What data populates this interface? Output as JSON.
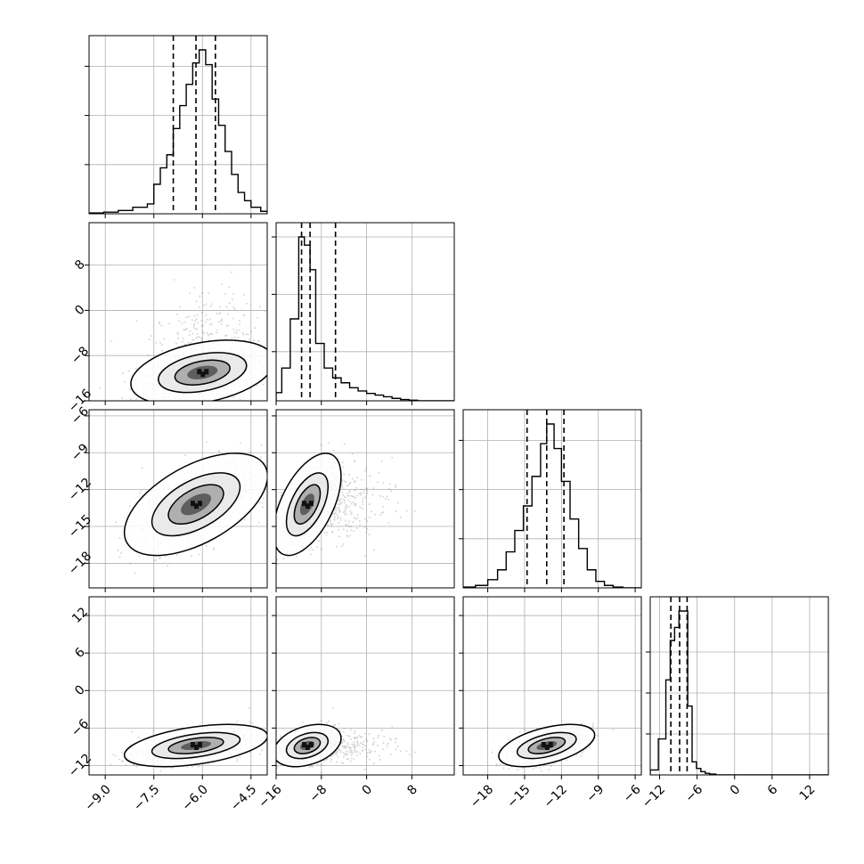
{
  "chart_data": {
    "type": "corner",
    "grid": true,
    "parameters": [
      {
        "index": 0,
        "range": [
          -9.5,
          -4.0
        ],
        "ticks": [
          -9.0,
          -7.5,
          -6.0,
          -4.5
        ],
        "tick_labels": [
          "−9.0",
          "−7.5",
          "−6.0",
          "−4.5"
        ],
        "quantiles": [
          -6.9,
          -6.2,
          -5.6
        ],
        "hist_bins": [
          -9.5,
          -9.05,
          -8.6,
          -8.15,
          -7.7,
          -7.5,
          -7.3,
          -7.1,
          -6.9,
          -6.7,
          -6.5,
          -6.3,
          -6.1,
          -5.9,
          -5.7,
          -5.5,
          -5.3,
          -5.1,
          -4.9,
          -4.7,
          -4.5,
          -4.2,
          -4.0
        ],
        "hist_counts": [
          0.005,
          0.01,
          0.02,
          0.04,
          0.06,
          0.18,
          0.28,
          0.36,
          0.52,
          0.66,
          0.79,
          0.92,
          1.0,
          0.91,
          0.7,
          0.54,
          0.38,
          0.24,
          0.13,
          0.08,
          0.04,
          0.015
        ],
        "hist_yticks": [
          0.3,
          0.6,
          0.9
        ]
      },
      {
        "index": 1,
        "range": [
          -16.0,
          15.5
        ],
        "ticks": [
          -16,
          -8,
          0,
          8
        ],
        "tick_labels": [
          "−16",
          "−8",
          "0",
          "8"
        ],
        "quantiles": [
          -11.5,
          -10.0,
          -5.5
        ],
        "hist_bins": [
          -16,
          -15,
          -13.5,
          -12,
          -11.0,
          -10.0,
          -9.0,
          -7.5,
          -6.0,
          -4.5,
          -3.0,
          -1.5,
          0,
          1.5,
          3.0,
          4.5,
          6.0,
          7.5,
          9.0,
          15.5
        ],
        "hist_counts": [
          0.05,
          0.2,
          0.5,
          1.0,
          0.95,
          0.8,
          0.35,
          0.2,
          0.14,
          0.11,
          0.08,
          0.06,
          0.045,
          0.035,
          0.025,
          0.015,
          0.008,
          0.004,
          0.0
        ],
        "hist_yticks": [
          0.3,
          0.65,
          1.0
        ],
        "axis_labels_visible": true
      },
      {
        "index": 2,
        "range": [
          -20.0,
          -5.5
        ],
        "ticks": [
          -18,
          -15,
          -12,
          -9,
          -6
        ],
        "tick_labels": [
          "−18",
          "−15",
          "−12",
          "−9",
          "−6"
        ],
        "quantiles": [
          -14.8,
          -13.2,
          -11.8
        ],
        "hist_bins": [
          -20,
          -19,
          -18,
          -17.2,
          -16.5,
          -15.8,
          -15.1,
          -14.4,
          -13.7,
          -13.2,
          -12.6,
          -12.0,
          -11.3,
          -10.6,
          -9.9,
          -9.2,
          -8.5,
          -7.8,
          -7.0,
          -5.5
        ],
        "hist_counts": [
          0.005,
          0.015,
          0.05,
          0.11,
          0.22,
          0.35,
          0.5,
          0.68,
          0.88,
          1.0,
          0.85,
          0.65,
          0.42,
          0.24,
          0.11,
          0.04,
          0.015,
          0.005,
          0.0
        ],
        "hist_yticks": [
          0.3,
          0.6,
          0.9
        ]
      },
      {
        "index": 3,
        "range": [
          -13.5,
          15.0
        ],
        "ticks": [
          -12,
          -6,
          0,
          6,
          12
        ],
        "tick_labels": [
          "−12",
          "−6",
          "0",
          "6",
          "12"
        ],
        "quantiles": [
          -10.2,
          -8.8,
          -7.6
        ],
        "hist_bins": [
          -13.5,
          -12.2,
          -11.0,
          -10.3,
          -9.6,
          -8.9,
          -8.2,
          -7.5,
          -6.8,
          -6.1,
          -5.4,
          -4.7,
          -4.0,
          -3.0,
          15.0
        ],
        "hist_counts": [
          0.03,
          0.22,
          0.58,
          0.82,
          0.9,
          1.0,
          1.0,
          0.42,
          0.08,
          0.04,
          0.02,
          0.01,
          0.005,
          0.0
        ],
        "hist_yticks": [
          0.25,
          0.5,
          0.75
        ]
      }
    ],
    "pairs": [
      {
        "row": 1,
        "col": 0,
        "center": [
          -6.0,
          -11.0
        ],
        "sd": [
          0.85,
          2.2
        ],
        "corr": 0.35,
        "tail": [
          0,
          6
        ]
      },
      {
        "row": 2,
        "col": 0,
        "center": [
          -6.2,
          -13.2
        ],
        "sd": [
          0.85,
          1.6
        ],
        "corr": 0.55,
        "tail": [
          0,
          0
        ]
      },
      {
        "row": 2,
        "col": 1,
        "center": [
          -10.5,
          -13.2
        ],
        "sd": [
          2.3,
          1.6
        ],
        "corr": 0.55,
        "tail": [
          6,
          0
        ]
      },
      {
        "row": 3,
        "col": 0,
        "center": [
          -6.2,
          -8.8
        ],
        "sd": [
          0.85,
          1.3
        ],
        "corr": 0.45,
        "tail": [
          0,
          0
        ]
      },
      {
        "row": 3,
        "col": 1,
        "center": [
          -10.5,
          -8.8
        ],
        "sd": [
          2.3,
          1.3
        ],
        "corr": 0.35,
        "tail": [
          6,
          0
        ]
      },
      {
        "row": 3,
        "col": 2,
        "center": [
          -13.2,
          -8.8
        ],
        "sd": [
          1.5,
          1.3
        ],
        "corr": 0.5,
        "tail": [
          0,
          0
        ]
      }
    ],
    "contour_levels": [
      0.118,
      0.393,
      0.675,
      0.864
    ],
    "colors": {
      "line": "#000000",
      "grid": "#b0b0b0",
      "points": "#5a5a5a",
      "frame": "#000000"
    }
  }
}
